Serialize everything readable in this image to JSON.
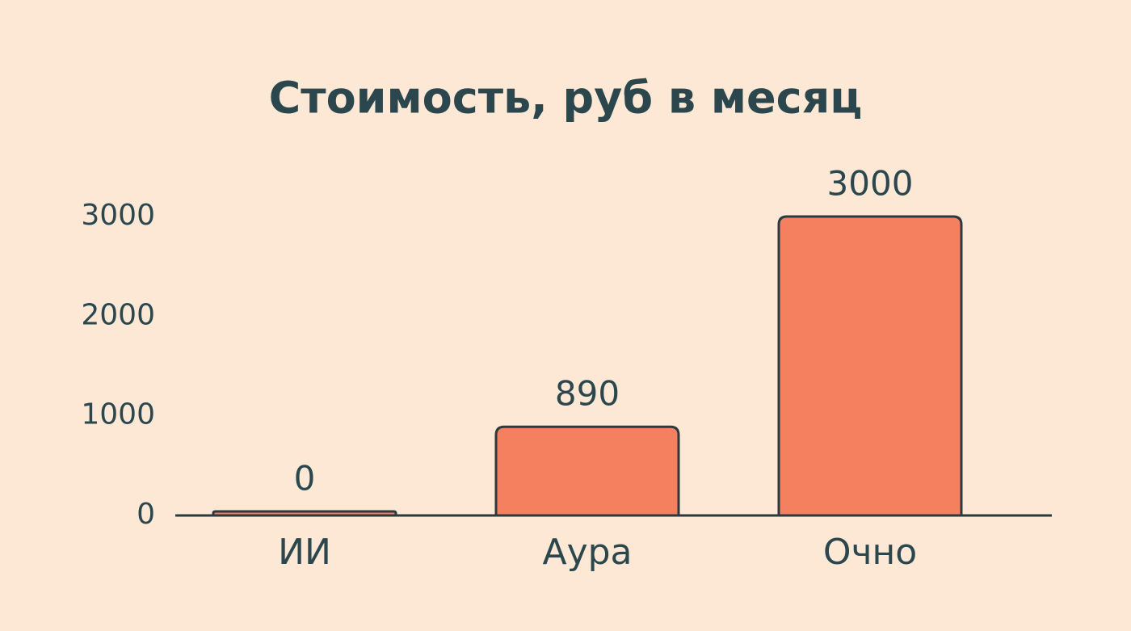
{
  "chart_data": {
    "type": "bar",
    "title": "Стоимость, руб в месяц",
    "categories": [
      "ИИ",
      "Аура",
      "Очно"
    ],
    "values": [
      0,
      890,
      3000
    ],
    "color": "#f4805f",
    "ylim": [
      0,
      3000
    ],
    "yticks": [
      0,
      1000,
      2000,
      3000
    ]
  }
}
